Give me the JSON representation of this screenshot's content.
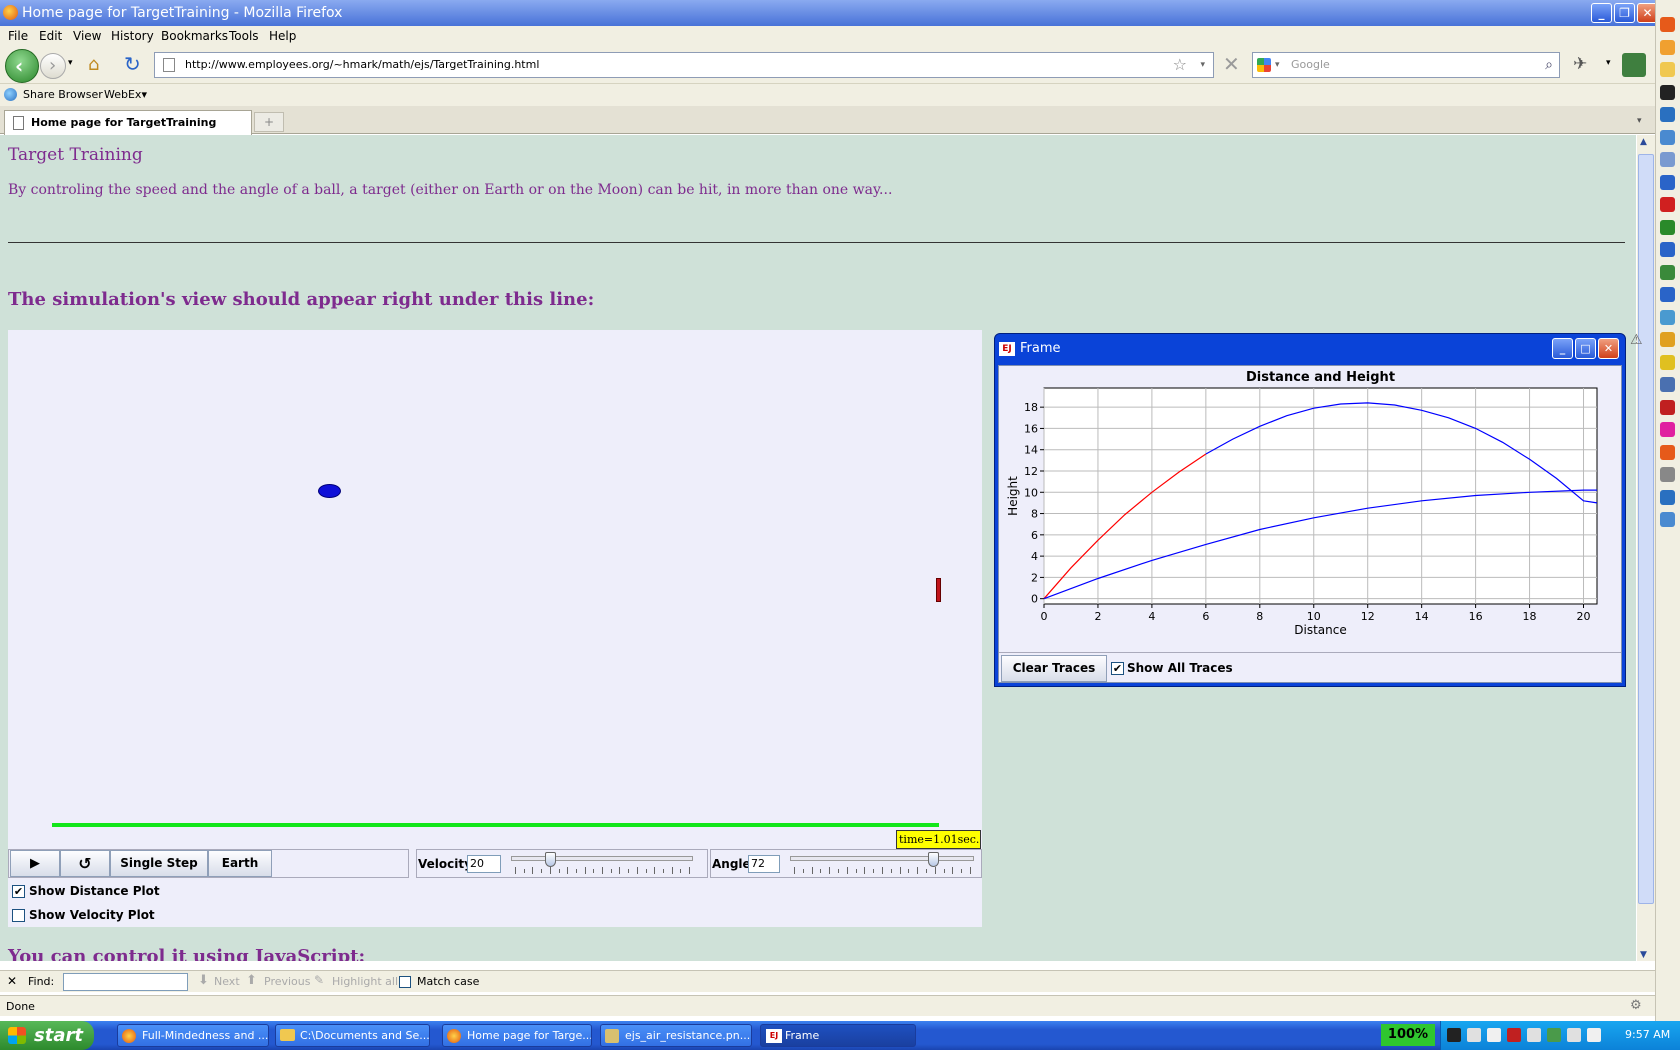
{
  "window": {
    "title": "Home page for TargetTraining - Mozilla Firefox"
  },
  "menu": [
    "File",
    "Edit",
    "View",
    "History",
    "Bookmarks",
    "Tools",
    "Help"
  ],
  "nav": {
    "url": "http://www.employees.org/~hmark/math/ejs/TargetTraining.html",
    "search_placeholder": "Google"
  },
  "bookmarks": {
    "share": "Share Browser",
    "webex": "WebEx▾"
  },
  "tabs": [
    {
      "label": "Home page for TargetTraining"
    }
  ],
  "page": {
    "title": "Target Training",
    "intro": "By controling the speed and the angle of a ball, a target (either on Earth or on the Moon) can be hit, in more than one way...",
    "heading": "The simulation's view should appear right under this line:",
    "heading2": "You can control it using JavaScript:"
  },
  "sim": {
    "time_label": "time=1.01sec.",
    "buttons": {
      "single_step": "Single Step",
      "earth": "Earth"
    },
    "velocity": {
      "label": "Velocity:",
      "value": "20",
      "fraction": 0.2
    },
    "angle": {
      "label": "Angle:",
      "value": "72",
      "fraction": 0.8
    },
    "checks": [
      {
        "label": "Show Distance Plot",
        "checked": true
      },
      {
        "label": "Show Velocity Plot",
        "checked": false
      }
    ]
  },
  "frame": {
    "title": "Frame",
    "clear_label": "Clear Traces",
    "show_all_label": "Show All Traces",
    "show_all_checked": true
  },
  "chart_data": {
    "type": "line",
    "title": "Distance and Height",
    "xlabel": "Distance",
    "ylabel": "Height",
    "xlim": [
      0,
      20.5
    ],
    "ylim": [
      -0.5,
      19.8
    ],
    "xticks": [
      0,
      2,
      4,
      6,
      8,
      10,
      12,
      14,
      16,
      18,
      20
    ],
    "yticks": [
      0,
      2,
      4,
      6,
      8,
      10,
      12,
      14,
      16,
      18
    ],
    "grid": true,
    "series": [
      {
        "color": "#ff0000",
        "x": [
          0,
          1,
          2,
          3,
          4,
          5,
          6
        ],
        "y": [
          0,
          2.9,
          5.5,
          7.9,
          10.0,
          11.9,
          13.6
        ]
      },
      {
        "color": "#0000ff",
        "x": [
          6,
          7,
          8,
          9,
          10,
          11,
          12,
          13,
          14,
          15,
          16,
          17,
          18,
          19,
          20,
          20.5
        ],
        "y": [
          13.6,
          15.0,
          16.2,
          17.2,
          17.9,
          18.3,
          18.4,
          18.2,
          17.7,
          17.0,
          16.0,
          14.7,
          13.1,
          11.3,
          9.2,
          9.0
        ]
      },
      {
        "color": "#0000ff",
        "x": [
          0,
          2,
          4,
          6,
          8,
          10,
          12,
          14,
          16,
          18,
          20,
          20.5
        ],
        "y": [
          0,
          1.9,
          3.6,
          5.1,
          6.5,
          7.6,
          8.5,
          9.2,
          9.7,
          10.0,
          10.2,
          10.2
        ]
      }
    ]
  },
  "find": {
    "label": "Find:",
    "next": "Next",
    "previous": "Previous",
    "highlight": "Highlight all",
    "match_case": "Match case"
  },
  "status": {
    "text": "Done"
  },
  "taskbar": {
    "start": "start",
    "items": [
      "Full-Mindedness and ...",
      "C:\\Documents and Se...",
      "Home page for Targe...",
      "ejs_air_resistance.pn...",
      "Frame"
    ],
    "zoom": "100%",
    "clock": "9:57 AM"
  }
}
